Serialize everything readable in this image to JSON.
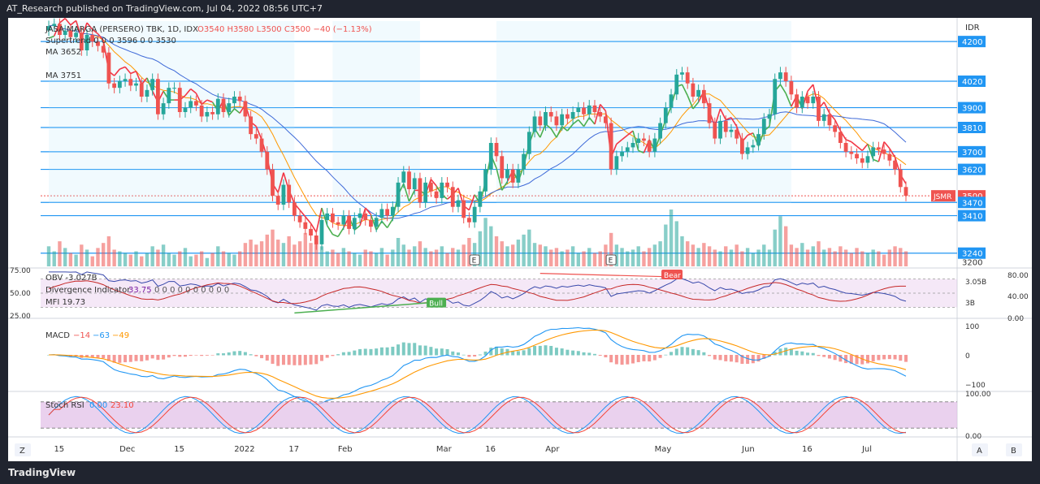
{
  "header": {
    "published": "AT_Research published on TradingView.com, Jul 04, 2022 08:56 UTC+7"
  },
  "footer": {
    "brand": "TradingView"
  },
  "colors": {
    "bull": "#26a69a",
    "bear": "#ef5350",
    "accent": "#2962ff",
    "supertrend_up": "#4caf50",
    "supertrend_down": "#f23645"
  },
  "chart_data": [
    {
      "type": "candlestick",
      "legend": {
        "title": "JASA MARGA (PERSERO) TBK, 1D, IDX",
        "ohlc": "O3540 H3580 L3500 C3500 −40 (−1.13%)",
        "supertrend": "Supertrend 0 0 0 3596 0 0 3530",
        "ma1": "MA 3652",
        "ma2": "MA 3751"
      },
      "currency": "IDR",
      "symbol_tag": "JSMR",
      "y_axis_labels": [
        "4200",
        "4020",
        "3900",
        "3810",
        "3700",
        "3620",
        "3500",
        "3470",
        "3410",
        "3240",
        "3200"
      ],
      "ylim": [
        3180,
        4300
      ],
      "x_axis_labels": [
        "15",
        "Dec",
        "15",
        "2022",
        "17",
        "Feb",
        "Mar",
        "16",
        "Apr",
        "May",
        "Jun",
        "16",
        "Jul"
      ],
      "horizontal_levels": [
        4200,
        4020,
        3900,
        3810,
        3700,
        3620,
        3470,
        3410,
        3240
      ],
      "close": [
        4270,
        4280,
        4230,
        4250,
        4220,
        4240,
        4160,
        4230,
        4200,
        4180,
        4150,
        4010,
        3990,
        4020,
        4030,
        4000,
        4010,
        3950,
        3980,
        4030,
        3870,
        3920,
        3990,
        3990,
        3880,
        3900,
        3930,
        3910,
        3860,
        3880,
        3870,
        3940,
        3880,
        3920,
        3950,
        3930,
        3860,
        3780,
        3760,
        3700,
        3620,
        3500,
        3460,
        3550,
        3470,
        3410,
        3380,
        3350,
        3320,
        3280,
        3390,
        3420,
        3380,
        3370,
        3410,
        3350,
        3400,
        3420,
        3390,
        3360,
        3400,
        3440,
        3410,
        3450,
        3560,
        3610,
        3530,
        3580,
        3470,
        3560,
        3520,
        3490,
        3560,
        3540,
        3450,
        3480,
        3400,
        3380,
        3450,
        3520,
        3620,
        3740,
        3680,
        3580,
        3620,
        3560,
        3620,
        3690,
        3790,
        3860,
        3820,
        3880,
        3860,
        3820,
        3870,
        3850,
        3880,
        3900,
        3870,
        3910,
        3880,
        3860,
        3830,
        3620,
        3680,
        3700,
        3720,
        3740,
        3760,
        3750,
        3700,
        3760,
        3830,
        3900,
        3960,
        4050,
        4060,
        4010,
        3950,
        3980,
        3920,
        3830,
        3760,
        3840,
        3790,
        3800,
        3760,
        3690,
        3720,
        3730,
        3780,
        3850,
        3870,
        4030,
        4060,
        4020,
        3960,
        3900,
        3950,
        3920,
        3950,
        3840,
        3870,
        3820,
        3790,
        3740,
        3700,
        3690,
        3670,
        3650,
        3680,
        3720,
        3710,
        3690,
        3660,
        3620,
        3540,
        3500
      ],
      "volume": [
        1.2,
        0.9,
        1.5,
        1.1,
        0.8,
        0.7,
        1.3,
        1.0,
        0.6,
        1.1,
        1.4,
        1.8,
        1.0,
        0.9,
        0.8,
        0.7,
        0.9,
        0.6,
        0.8,
        1.2,
        1.0,
        1.3,
        0.8,
        0.7,
        0.9,
        1.1,
        0.6,
        0.7,
        0.9,
        0.5,
        0.8,
        1.2,
        0.9,
        0.8,
        0.7,
        0.9,
        1.4,
        1.6,
        1.3,
        1.5,
        1.9,
        2.2,
        1.6,
        1.4,
        1.8,
        1.3,
        1.5,
        2.0,
        1.4,
        1.6,
        1.2,
        0.9,
        1.0,
        0.8,
        1.1,
        0.9,
        0.8,
        0.7,
        1.0,
        0.9,
        0.8,
        1.1,
        0.7,
        1.0,
        1.7,
        1.3,
        1.0,
        1.2,
        1.5,
        1.1,
        0.9,
        1.0,
        1.2,
        0.8,
        1.1,
        1.0,
        1.3,
        1.7,
        1.4,
        2.1,
        2.9,
        2.4,
        1.8,
        1.5,
        1.2,
        1.3,
        1.6,
        1.9,
        2.2,
        1.4,
        1.3,
        1.2,
        1.0,
        1.1,
        0.9,
        1.0,
        1.2,
        0.8,
        0.9,
        1.1,
        0.8,
        0.9,
        1.3,
        2.0,
        1.3,
        1.1,
        0.9,
        1.0,
        1.2,
        0.9,
        1.1,
        1.3,
        1.5,
        2.5,
        3.4,
        2.7,
        1.8,
        1.5,
        1.3,
        1.1,
        1.4,
        1.2,
        1.0,
        0.9,
        1.2,
        1.0,
        1.3,
        0.9,
        1.1,
        0.8,
        1.0,
        1.3,
        1.0,
        2.2,
        3.0,
        2.4,
        1.3,
        1.1,
        1.4,
        1.0,
        1.2,
        1.5,
        1.0,
        1.1,
        0.9,
        1.2,
        1.0,
        0.8,
        1.1,
        0.9,
        0.8,
        1.0,
        0.9,
        0.7,
        1.0,
        1.2,
        1.1,
        0.9
      ],
      "markers": [
        {
          "label": "E"
        },
        {
          "label": "E"
        }
      ]
    },
    {
      "type": "line",
      "panel": "OBV / Divergence / MFI",
      "legend": {
        "obv": "OBV -3.027B",
        "div": "Divergence Indicator",
        "div_value": "33.75",
        "div_zeros": "0 0 0 0 0 0 0 0 0 0",
        "mfi": "MFI 19.73"
      },
      "left_axis": [
        "75.00",
        "50.00",
        "25.00"
      ],
      "right_axis": [
        "80.00",
        "40.00",
        "0.00"
      ],
      "obv_axis": [
        "3.05B",
        "3B"
      ],
      "tags": {
        "bear": "Bear",
        "bull": "Bull"
      }
    },
    {
      "type": "line",
      "panel": "MACD",
      "legend": {
        "name": "MACD",
        "v1": "−14",
        "v2": "−63",
        "v3": "−49"
      },
      "right_axis": [
        "100",
        "0",
        "−100"
      ]
    },
    {
      "type": "line",
      "panel": "Stoch RSI",
      "legend": {
        "name": "Stoch RSI",
        "v1": "0.00",
        "v2": "23.10"
      },
      "right_axis": [
        "100.00",
        "0.00"
      ]
    }
  ],
  "ui": {
    "z_button": "Z",
    "a_button": "A",
    "b_button": "B"
  }
}
